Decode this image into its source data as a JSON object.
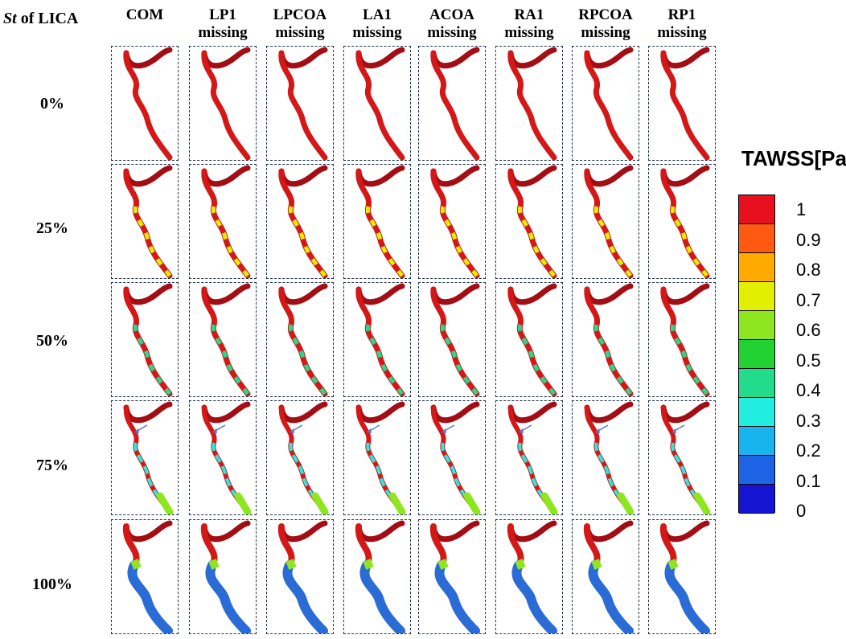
{
  "corner": {
    "st": "St",
    "rest": " of LICA"
  },
  "columns": [
    [
      "COM"
    ],
    [
      "LP1",
      "missing"
    ],
    [
      "LPCOA",
      "missing"
    ],
    [
      "LA1",
      "missing"
    ],
    [
      "ACOA",
      "missing"
    ],
    [
      "RA1",
      "missing"
    ],
    [
      "RPCOA",
      "missing"
    ],
    [
      "RP1",
      "missing"
    ]
  ],
  "rows": [
    "0%",
    "25%",
    "50%",
    "75%",
    "100%"
  ],
  "legend": {
    "title": "TAWSS[Pa]",
    "ticks": [
      "1",
      "0.9",
      "0.8",
      "0.7",
      "0.6",
      "0.5",
      "0.4",
      "0.3",
      "0.2",
      "0.1",
      "0"
    ],
    "colors": [
      "#e8101e",
      "#ff5a10",
      "#ffaa00",
      "#e2f000",
      "#8ee620",
      "#22d232",
      "#22dc8c",
      "#22eee0",
      "#18b4f0",
      "#1e64e6",
      "#1414d2"
    ]
  },
  "palette": {
    "vessel_red": "#d41818",
    "vessel_dark": "#a30d14",
    "vessel_blue": "#2a6bd6",
    "arrow": "#5577cc"
  }
}
